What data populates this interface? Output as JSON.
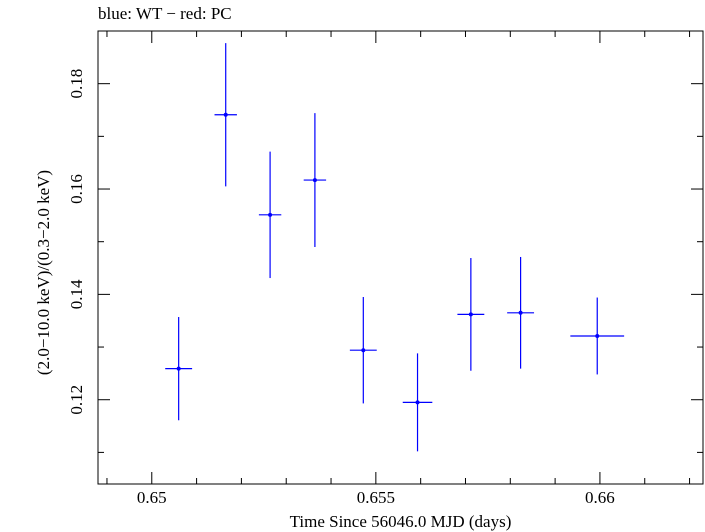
{
  "chart_data": {
    "type": "scatter",
    "title": "blue: WT − red: PC",
    "xlabel": "Time Since 56046.0 MJD (days)",
    "ylabel": "(2.0−10.0 keV)/(0.3−2.0 keV)",
    "xlim": [
      0.6488,
      0.6623
    ],
    "ylim": [
      0.104,
      0.19
    ],
    "xticks": [
      0.65,
      0.655,
      0.66
    ],
    "xtick_labels": [
      "0.65",
      "0.655",
      "0.66"
    ],
    "yticks": [
      0.12,
      0.14,
      0.16,
      0.18
    ],
    "ytick_labels": [
      "0.12",
      "0.14",
      "0.16",
      "0.18"
    ],
    "grid": false,
    "series": [
      {
        "name": "WT",
        "color": "#0000ff",
        "points": [
          {
            "x": 0.6506,
            "xerr": 0.0003,
            "y": 0.1259,
            "yerr": 0.0098
          },
          {
            "x": 0.65165,
            "xerr": 0.00025,
            "y": 0.1741,
            "yerr": 0.0136
          },
          {
            "x": 0.65264,
            "xerr": 0.00025,
            "y": 0.1551,
            "yerr": 0.012
          },
          {
            "x": 0.65364,
            "xerr": 0.00025,
            "y": 0.1617,
            "yerr": 0.0127
          },
          {
            "x": 0.65472,
            "xerr": 0.0003,
            "y": 0.1294,
            "yerr": 0.0101
          },
          {
            "x": 0.65593,
            "xerr": 0.00033,
            "y": 0.1195,
            "yerr": 0.0093
          },
          {
            "x": 0.65712,
            "xerr": 0.0003,
            "y": 0.1362,
            "yerr": 0.0107
          },
          {
            "x": 0.65823,
            "xerr": 0.0003,
            "y": 0.1365,
            "yerr": 0.0106
          },
          {
            "x": 0.65994,
            "xerr": 0.0006,
            "y": 0.1321,
            "yerr": 0.0073
          }
        ]
      }
    ]
  }
}
